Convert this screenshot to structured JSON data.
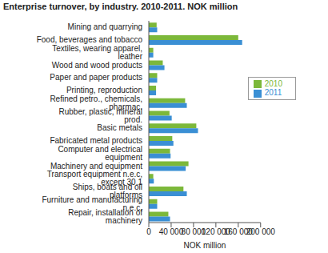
{
  "chart_data": {
    "type": "bar",
    "title": "Enterprise turnover, by industry. 2010-2011. NOK million",
    "orientation": "horizontal",
    "x_label": "NOK million",
    "categories": [
      "Mining and quarrying",
      "Food, beverages and tobacco",
      "Textiles, wearing apparel, leather",
      "Wood and wood products",
      "Paper and paper products",
      "Printing, reproduction",
      "Refined petro., chemicals, pharmac.",
      "Rubber, plastic, mineral prod.",
      "Basic metals",
      "Fabricated metal products",
      "Computer and electrical equipment",
      "Machinery and equipment",
      "Transport equipment n.e.c, except 30.1",
      "Ships, boats and oil platforms",
      "Furniture and manufacturing n.e.c.",
      "Repair, installation of machinery"
    ],
    "series": [
      {
        "name": "2010",
        "color": "#7cb83a",
        "values": [
          14000,
          160000,
          8000,
          25000,
          15000,
          13000,
          65000,
          37000,
          85000,
          42000,
          38000,
          71000,
          8000,
          62000,
          15000,
          35000
        ]
      },
      {
        "name": "2011",
        "color": "#3a8fd4",
        "values": [
          15000,
          167000,
          8000,
          28000,
          15000,
          13000,
          68000,
          41000,
          88000,
          44000,
          39000,
          66000,
          9000,
          68000,
          15000,
          38000
        ]
      }
    ],
    "xlim": [
      0,
      200000
    ],
    "xticks": [
      0,
      {
        "value": 40000,
        "label": "40 000"
      },
      {
        "value": 80000,
        "label": "80 000"
      },
      {
        "value": 120000,
        "label": "120 000"
      },
      {
        "value": 160000,
        "label": "160 000"
      },
      {
        "value": 200000,
        "label": "200 000"
      }
    ],
    "grid": false,
    "legend": "right"
  }
}
